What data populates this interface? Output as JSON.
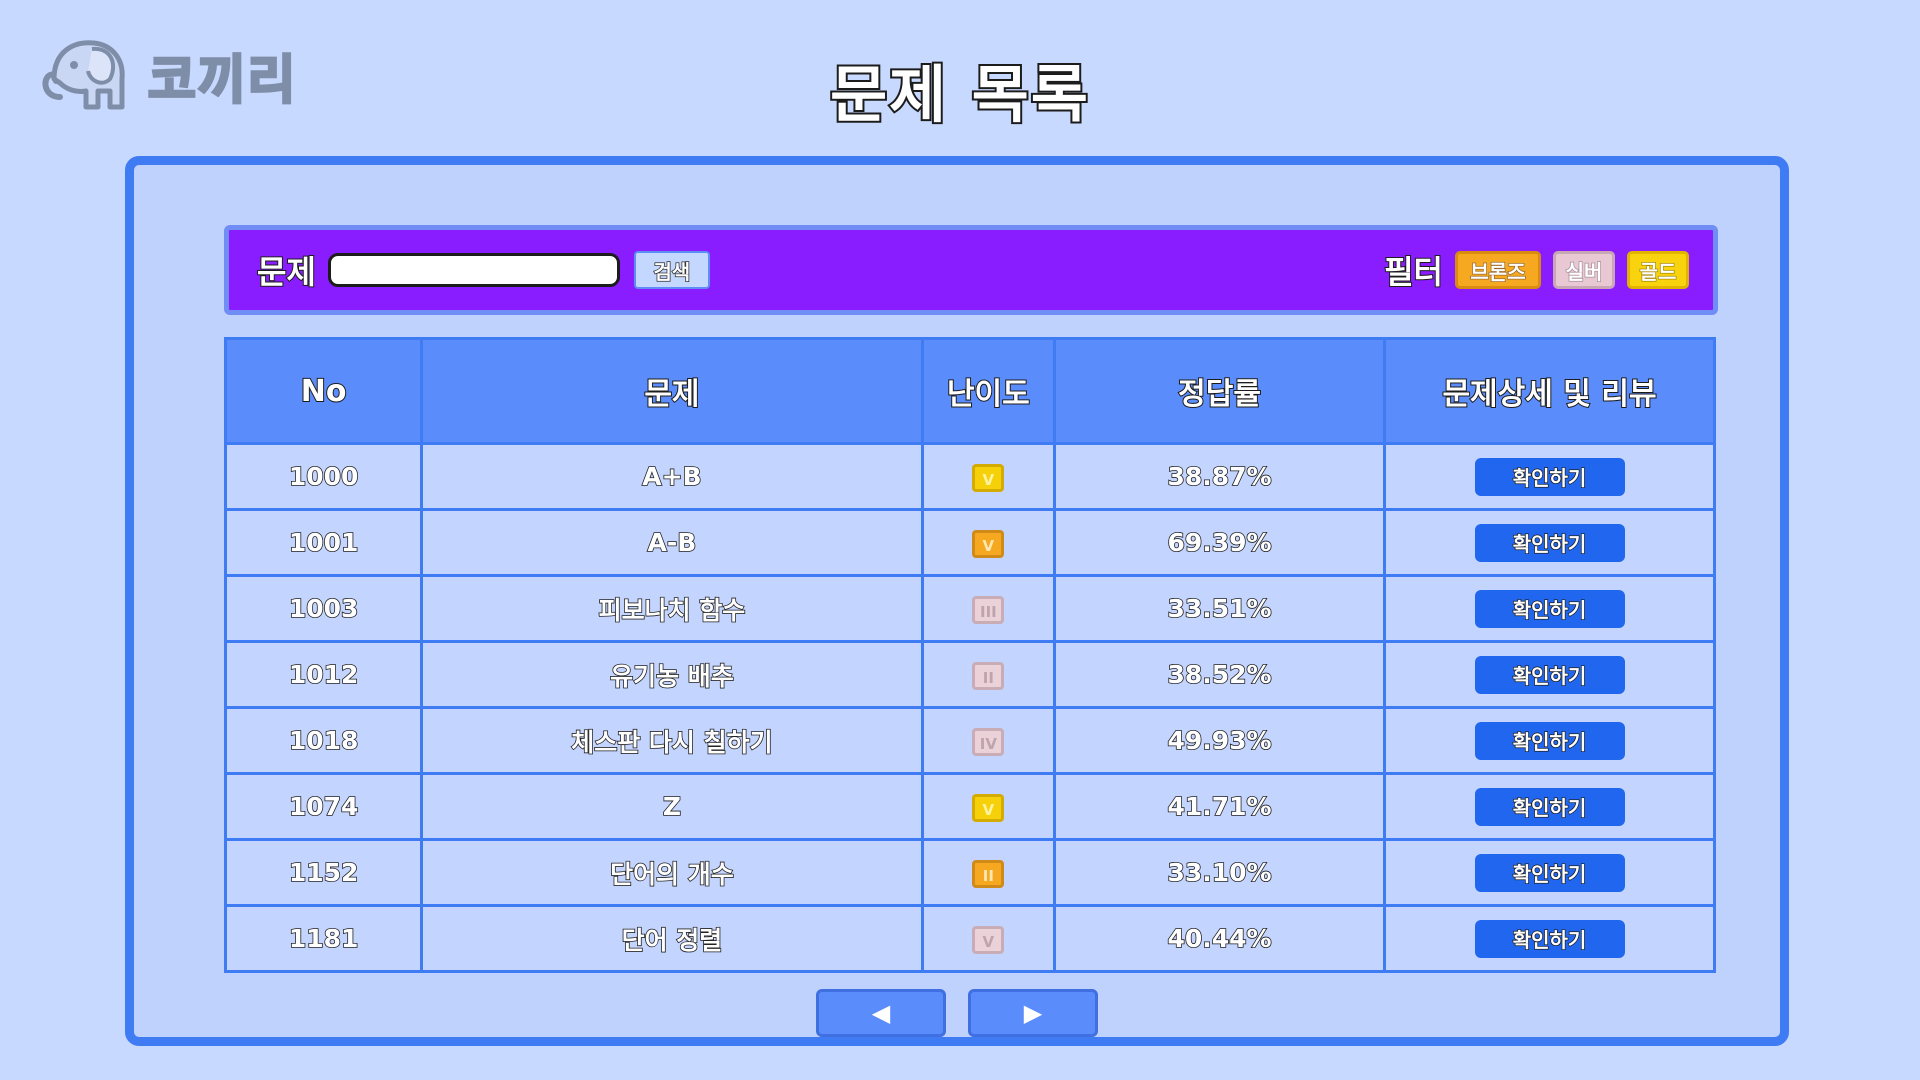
{
  "app": {
    "logo_text": "코끼리",
    "title": "문제 목록"
  },
  "search": {
    "label": "문제",
    "placeholder": "",
    "value": "",
    "button_label": "검색"
  },
  "filter": {
    "label": "필터",
    "options": [
      {
        "label": "브론즈",
        "color": "#f6a821"
      },
      {
        "label": "실버",
        "color": "#e8c9d3"
      },
      {
        "label": "골드",
        "color": "#f9d30e"
      }
    ]
  },
  "table": {
    "headers": [
      "No",
      "문제",
      "난이도",
      "정답률",
      "문제상세 및 리뷰"
    ],
    "rows": [
      {
        "no": "1000",
        "title": "A+B",
        "tier": "gold",
        "level": "V",
        "rate": "38.87%",
        "action": "확인하기"
      },
      {
        "no": "1001",
        "title": "A-B",
        "tier": "bronze",
        "level": "V",
        "rate": "69.39%",
        "action": "확인하기"
      },
      {
        "no": "1003",
        "title": "피보나치 함수",
        "tier": "silver",
        "level": "III",
        "rate": "33.51%",
        "action": "확인하기"
      },
      {
        "no": "1012",
        "title": "유기농 배추",
        "tier": "silver",
        "level": "II",
        "rate": "38.52%",
        "action": "확인하기"
      },
      {
        "no": "1018",
        "title": "체스판 다시 칠하기",
        "tier": "silver",
        "level": "IV",
        "rate": "49.93%",
        "action": "확인하기"
      },
      {
        "no": "1074",
        "title": "Z",
        "tier": "gold",
        "level": "V",
        "rate": "41.71%",
        "action": "확인하기"
      },
      {
        "no": "1152",
        "title": "단어의 개수",
        "tier": "bronze",
        "level": "II",
        "rate": "33.10%",
        "action": "확인하기"
      },
      {
        "no": "1181",
        "title": "단어 정렬",
        "tier": "silver",
        "level": "V",
        "rate": "40.44%",
        "action": "확인하기"
      }
    ]
  },
  "pagination": {
    "prev_label": "◀",
    "next_label": "▶"
  },
  "colors": {
    "background": "#c8d9ff",
    "panel_border": "#3f7cf4",
    "search_bar": "#8a1dff",
    "table_header": "#5b8cfb",
    "button": "#2166ef"
  }
}
